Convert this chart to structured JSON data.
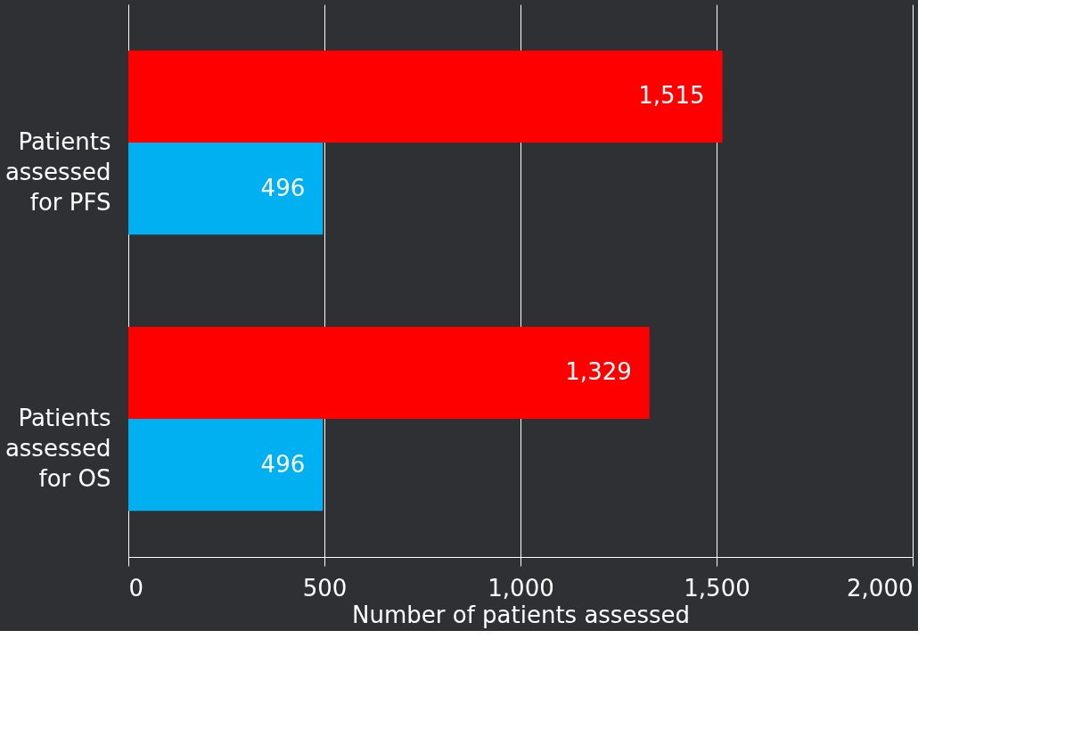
{
  "chart_data": {
    "type": "bar",
    "orientation": "horizontal",
    "xlabel": "Number of patients assessed",
    "categories": [
      "Patients assessed for PFS",
      "Patients assessed for OS"
    ],
    "series": [
      {
        "color": "#ff0000",
        "values": [
          1515,
          1329
        ],
        "value_labels": [
          "1,515",
          "1,329"
        ]
      },
      {
        "color": "#00b0f0",
        "values": [
          496,
          496
        ],
        "value_labels": [
          "496",
          "496"
        ]
      }
    ],
    "xlim": [
      0,
      2000
    ],
    "xticks": [
      0,
      500,
      {
        "value": 1000,
        "label": "1,000"
      },
      {
        "value": 1500,
        "label": "1,500"
      },
      {
        "value": 2000,
        "label": "2,000"
      }
    ],
    "grid": "x"
  }
}
